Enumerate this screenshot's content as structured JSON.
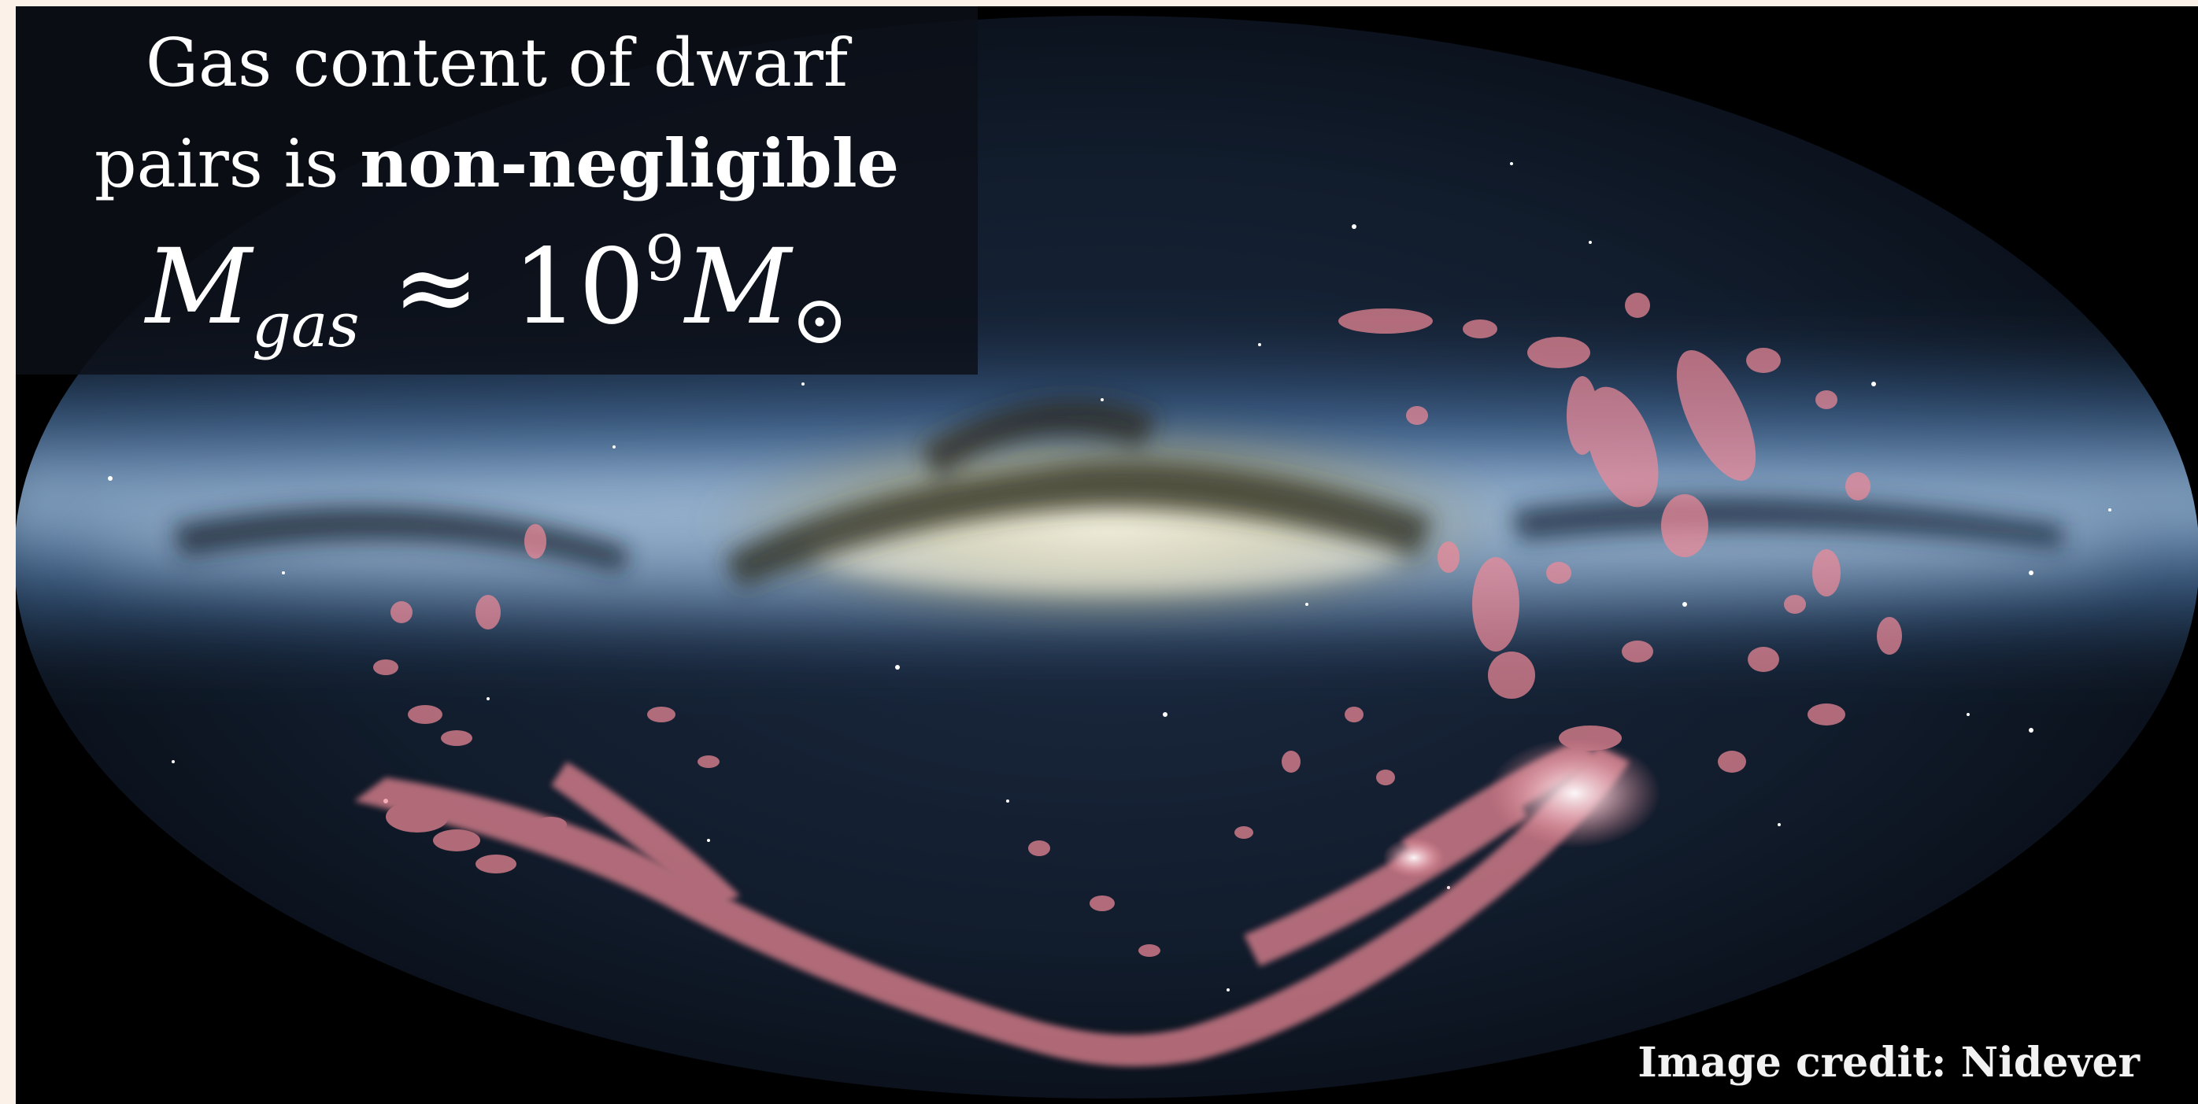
{
  "slide": {
    "title_line1": "Gas content of dwarf",
    "title_line2_prefix": "pairs is ",
    "title_line2_bold": "non-negligible",
    "formula": {
      "symbol": "M",
      "subscript": "gas",
      "approx": "≈",
      "base": "10",
      "exponent": "9",
      "unit_symbol": "M",
      "unit_subscript": "⊙"
    },
    "image_credit": "Image credit: Nidever"
  },
  "colors": {
    "background": "#000000",
    "milky_way_band": "#6a9fd8",
    "galactic_center": "#d9c98a",
    "gas_overlay": "#f08b98",
    "text": "#ffffff"
  }
}
